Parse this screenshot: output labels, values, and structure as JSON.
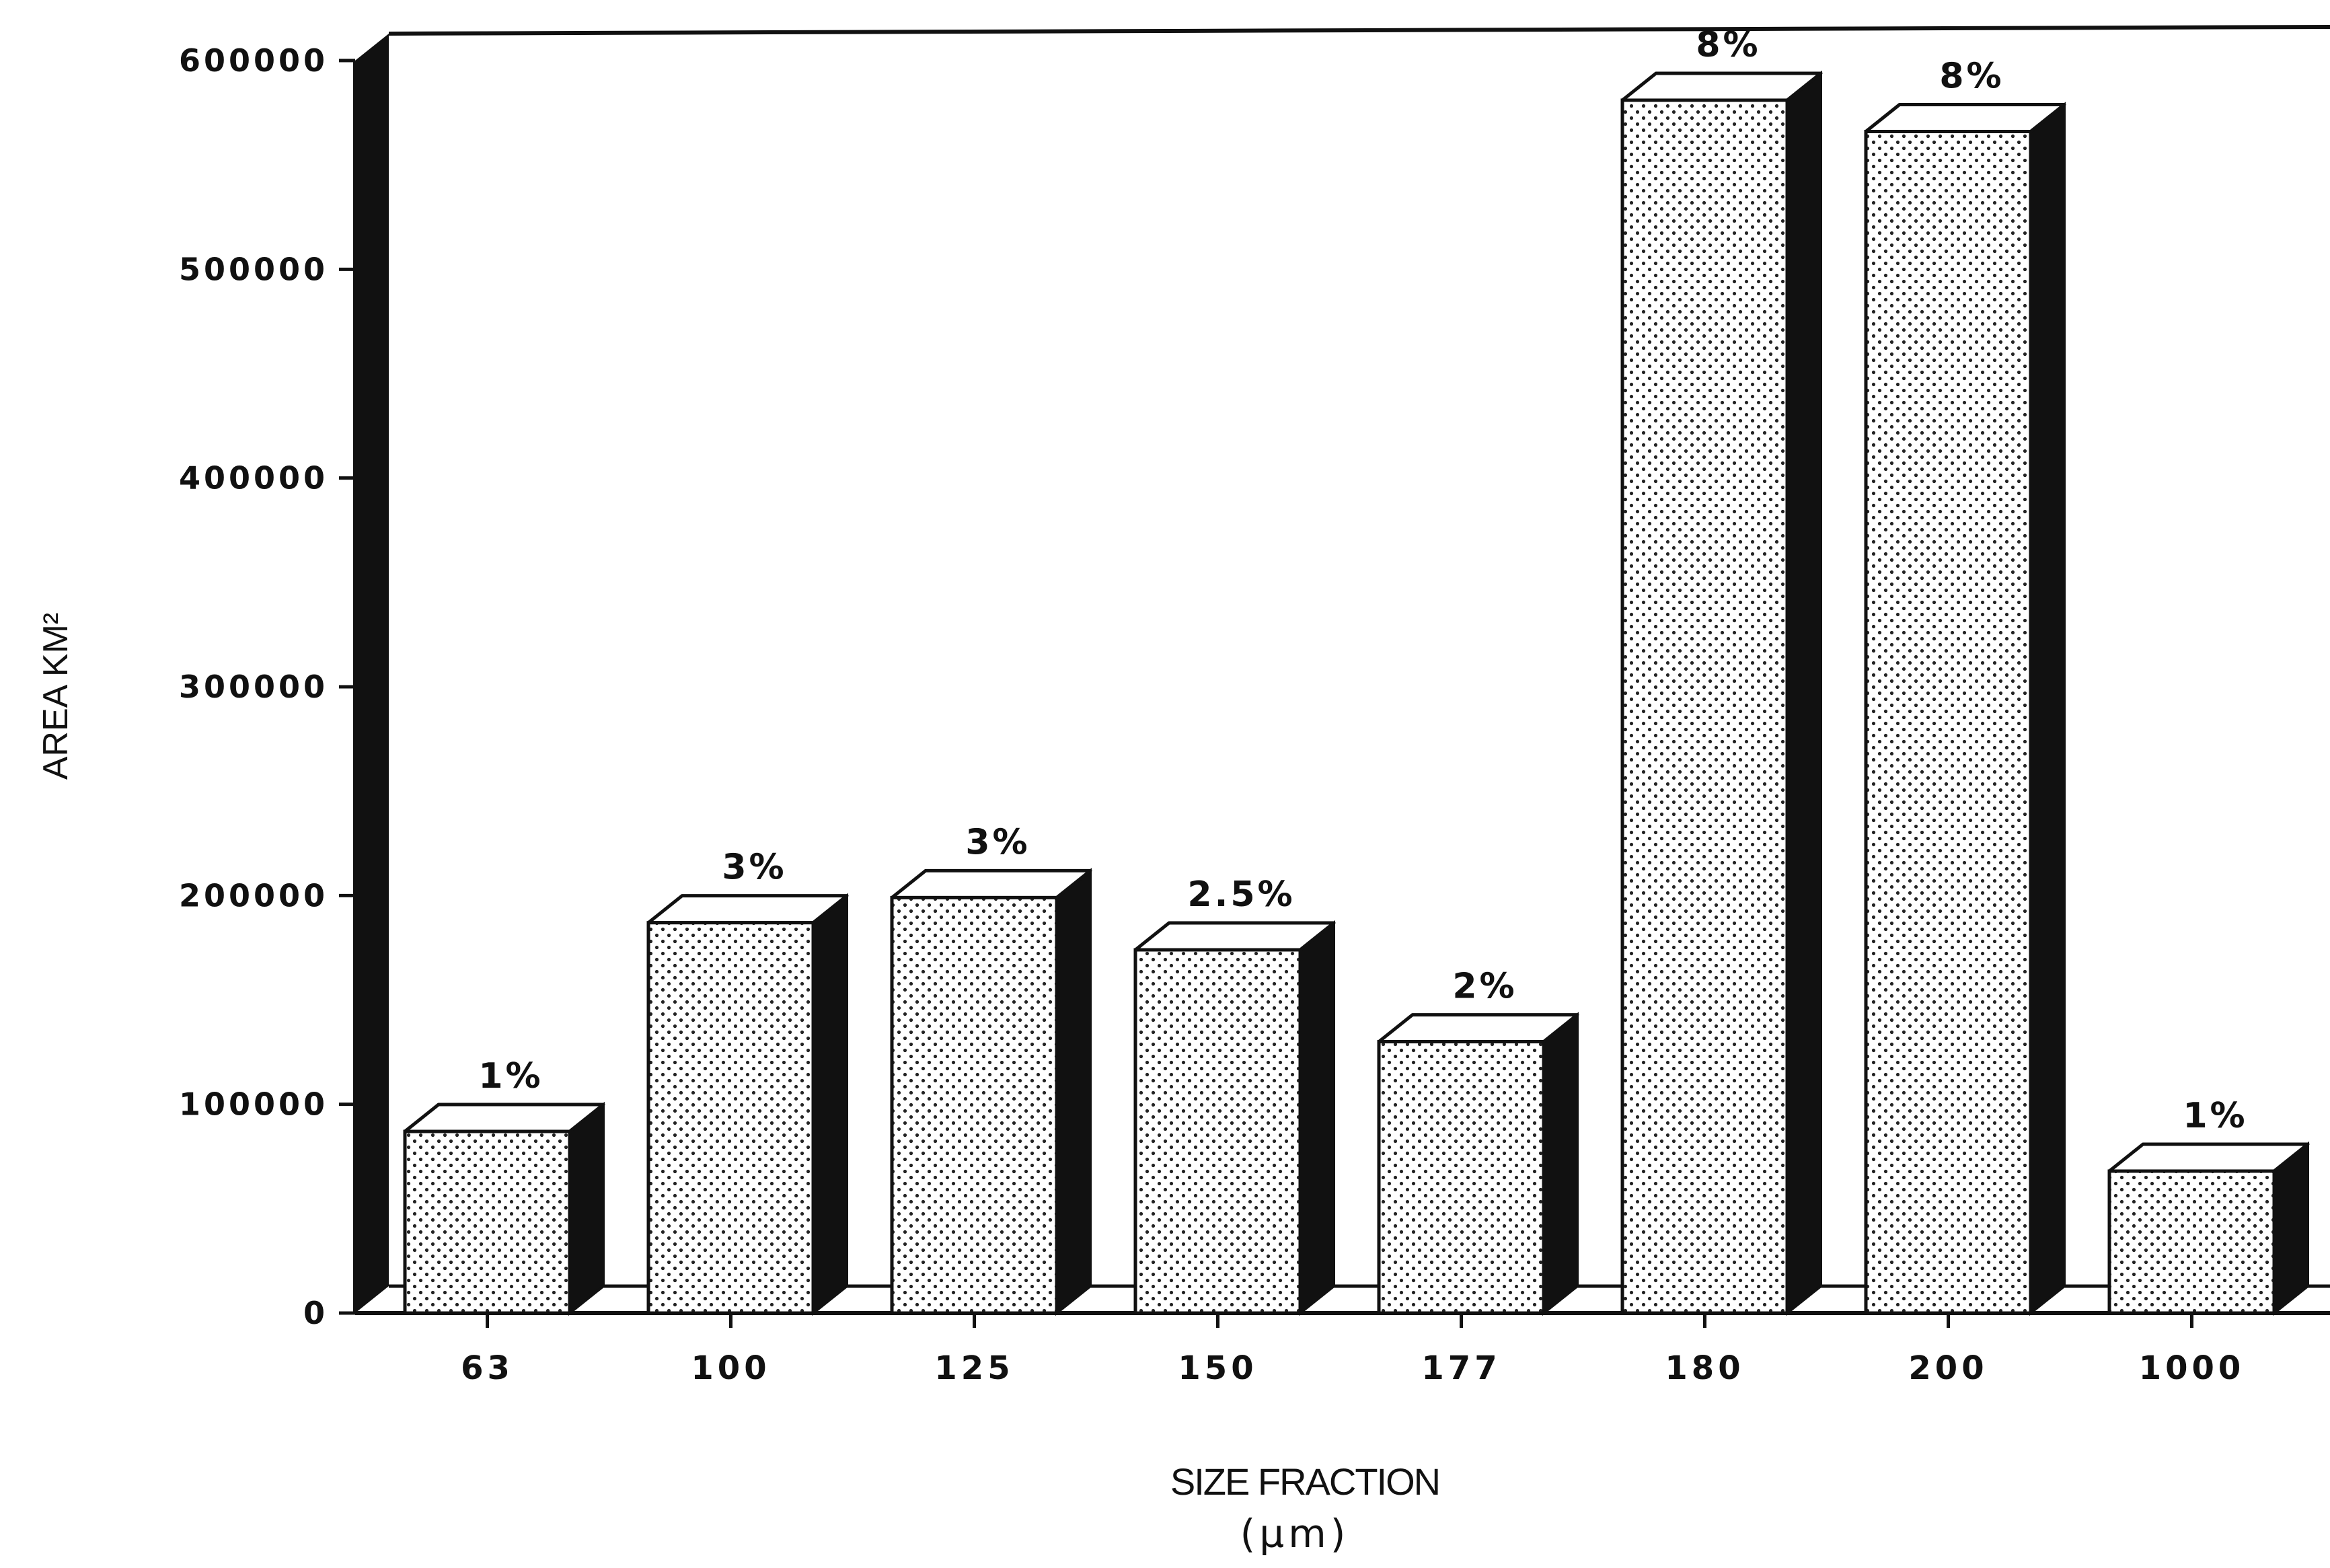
{
  "chart_data": {
    "type": "bar",
    "categories": [
      "63",
      "100",
      "125",
      "150",
      "177",
      "180",
      "200",
      "1000"
    ],
    "values": [
      87000,
      187000,
      199000,
      174000,
      130000,
      581000,
      566000,
      68000
    ],
    "data_labels": [
      "1%",
      "3%",
      "3%",
      "2.5%",
      "2%",
      "8%",
      "8%",
      "1%"
    ],
    "title": "",
    "xlabel": "SIZE FRACTION",
    "xlabel_unit": "(µm)",
    "ylabel": "AREA KM²",
    "ylim": [
      0,
      600000
    ],
    "yticks": [
      "0",
      "100000",
      "200000",
      "300000",
      "400000",
      "500000",
      "600000"
    ],
    "style": "3d-bar",
    "bar_fill": "stippled",
    "grid": false,
    "legend": "none",
    "colors": {
      "ink": "#111111",
      "bar_face": "#ffffff",
      "background": "#ffffff"
    }
  }
}
